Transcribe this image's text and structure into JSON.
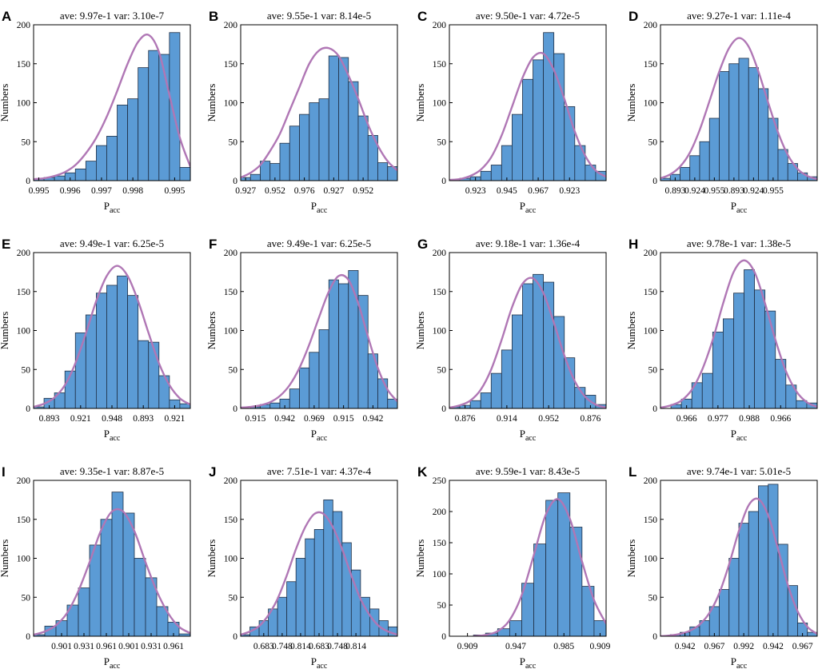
{
  "figure": {
    "title": "Histograms of P_acc with fitted normal curves"
  },
  "style": {
    "bar_fill": "#5b9bd5",
    "bar_stroke": "#1f2f45",
    "curve": "#b077b5",
    "axes": "#000000"
  },
  "chart_data": [
    {
      "id": "A",
      "type": "bar",
      "title": "ave: 9.97e-1 var: 3.10e-7",
      "xlabel": "P",
      "xlabel_sub": "acc",
      "ylabel": "Numbers",
      "ylim": [
        0,
        200
      ],
      "yticks": [
        0,
        50,
        100,
        150,
        200
      ],
      "xticks": [
        "0.995",
        "0.996",
        "0.997",
        "0.998",
        "0.995"
      ],
      "xtick_bins": [
        0.5,
        3.5,
        6.5,
        9.5,
        13.5
      ],
      "values": [
        2,
        4,
        6,
        10,
        15,
        25,
        45,
        57,
        97,
        105,
        145,
        167,
        162,
        190,
        17
      ],
      "curve": [
        [
          0,
          2
        ],
        [
          1,
          3
        ],
        [
          2,
          6
        ],
        [
          3,
          11
        ],
        [
          4,
          20
        ],
        [
          5,
          35
        ],
        [
          6,
          55
        ],
        [
          7,
          82
        ],
        [
          8,
          115
        ],
        [
          9,
          150
        ],
        [
          10,
          178
        ],
        [
          11,
          187
        ],
        [
          12,
          165
        ],
        [
          13,
          110
        ],
        [
          14,
          55
        ],
        [
          15,
          18
        ]
      ]
    },
    {
      "id": "B",
      "type": "bar",
      "title": "ave: 9.55e-1 var: 8.14e-5",
      "xlabel": "P",
      "xlabel_sub": "acc",
      "ylabel": "Numbers",
      "ylim": [
        0,
        200
      ],
      "yticks": [
        0,
        50,
        100,
        150,
        200
      ],
      "xticks": [
        "0.927",
        "0.952",
        "0.976",
        "0.927",
        "0.952"
      ],
      "xtick_bins": [
        0.5,
        3.5,
        6.5,
        9.5,
        12.5
      ],
      "values": [
        4,
        8,
        25,
        22,
        48,
        70,
        85,
        100,
        105,
        160,
        158,
        127,
        83,
        58,
        23,
        18
      ],
      "curve": [
        [
          0,
          4
        ],
        [
          1,
          10
        ],
        [
          2,
          20
        ],
        [
          3,
          38
        ],
        [
          4,
          60
        ],
        [
          5,
          90
        ],
        [
          6,
          120
        ],
        [
          7,
          150
        ],
        [
          8,
          167
        ],
        [
          9,
          170
        ],
        [
          10,
          160
        ],
        [
          11,
          135
        ],
        [
          12,
          105
        ],
        [
          13,
          72
        ],
        [
          14,
          45
        ],
        [
          15,
          25
        ],
        [
          16,
          13
        ]
      ]
    },
    {
      "id": "C",
      "type": "bar",
      "title": "ave: 9.50e-1 var: 4.72e-5",
      "xlabel": "P",
      "xlabel_sub": "acc",
      "ylabel": "Numbers",
      "ylim": [
        0,
        200
      ],
      "yticks": [
        0,
        50,
        100,
        150,
        200
      ],
      "xticks": [
        "0.923",
        "0.945",
        "0.967",
        "0.923"
      ],
      "xtick_bins": [
        2.5,
        5.5,
        8.5,
        11.5
      ],
      "values": [
        1,
        3,
        5,
        12,
        20,
        45,
        85,
        130,
        155,
        190,
        163,
        95,
        45,
        20,
        12
      ],
      "curve": [
        [
          0,
          1
        ],
        [
          1,
          2
        ],
        [
          2,
          6
        ],
        [
          3,
          14
        ],
        [
          4,
          30
        ],
        [
          5,
          58
        ],
        [
          6,
          95
        ],
        [
          7,
          132
        ],
        [
          8,
          158
        ],
        [
          9,
          163
        ],
        [
          10,
          142
        ],
        [
          11,
          105
        ],
        [
          12,
          63
        ],
        [
          13,
          32
        ],
        [
          14,
          13
        ],
        [
          15,
          5
        ]
      ]
    },
    {
      "id": "D",
      "type": "bar",
      "title": "ave: 9.27e-1 var: 1.11e-4",
      "xlabel": "P",
      "xlabel_sub": "acc",
      "ylabel": "Numbers",
      "ylim": [
        0,
        200
      ],
      "yticks": [
        0,
        50,
        100,
        150,
        200
      ],
      "xticks": [
        "0.893",
        "0.924",
        "0.955",
        "0.893",
        "0.924",
        "0.955"
      ],
      "xtick_bins": [
        1.5,
        3.5,
        5.5,
        7.5,
        9.5,
        11.5
      ],
      "values": [
        3,
        8,
        17,
        32,
        50,
        80,
        140,
        150,
        157,
        145,
        118,
        80,
        40,
        22,
        10,
        5
      ],
      "curve": [
        [
          0,
          3
        ],
        [
          1,
          8
        ],
        [
          2,
          18
        ],
        [
          3,
          36
        ],
        [
          4,
          65
        ],
        [
          5,
          102
        ],
        [
          6,
          140
        ],
        [
          7,
          170
        ],
        [
          8,
          183
        ],
        [
          9,
          172
        ],
        [
          10,
          140
        ],
        [
          11,
          100
        ],
        [
          12,
          62
        ],
        [
          13,
          33
        ],
        [
          14,
          15
        ],
        [
          15,
          6
        ],
        [
          16,
          2
        ]
      ]
    },
    {
      "id": "E",
      "type": "bar",
      "title": "ave: 9.49e-1 var: 6.25e-5",
      "xlabel": "P",
      "xlabel_sub": "acc",
      "ylabel": "Numbers",
      "ylim": [
        0,
        200
      ],
      "yticks": [
        0,
        50,
        100,
        150,
        200
      ],
      "xticks": [
        "0.893",
        "0.921",
        "0.948",
        "0.893",
        "0.921"
      ],
      "xtick_bins": [
        1.5,
        4.5,
        7.5,
        10.5,
        13.5
      ],
      "values": [
        2,
        13,
        20,
        48,
        97,
        120,
        148,
        158,
        170,
        145,
        87,
        85,
        42,
        11,
        6
      ],
      "curve": [
        [
          0,
          2
        ],
        [
          1,
          6
        ],
        [
          2,
          14
        ],
        [
          3,
          30
        ],
        [
          4,
          58
        ],
        [
          5,
          96
        ],
        [
          6,
          138
        ],
        [
          7,
          170
        ],
        [
          8,
          183
        ],
        [
          9,
          170
        ],
        [
          10,
          138
        ],
        [
          11,
          97
        ],
        [
          12,
          58
        ],
        [
          13,
          30
        ],
        [
          14,
          13
        ],
        [
          15,
          5
        ]
      ]
    },
    {
      "id": "F",
      "type": "bar",
      "title": "ave: 9.49e-1 var: 6.25e-5",
      "xlabel": "P",
      "xlabel_sub": "acc",
      "ylabel": "Numbers",
      "ylim": [
        0,
        200
      ],
      "yticks": [
        0,
        50,
        100,
        150,
        200
      ],
      "xticks": [
        "0.915",
        "0.942",
        "0.969",
        "0.915",
        "0.942"
      ],
      "xtick_bins": [
        1.5,
        4.5,
        7.5,
        10.5,
        13.5
      ],
      "values": [
        0,
        2,
        5,
        7,
        12,
        25,
        52,
        72,
        101,
        165,
        160,
        177,
        145,
        70,
        38,
        12
      ],
      "curve": [
        [
          0,
          1
        ],
        [
          1,
          2
        ],
        [
          2,
          4
        ],
        [
          3,
          8
        ],
        [
          4,
          16
        ],
        [
          5,
          30
        ],
        [
          6,
          52
        ],
        [
          7,
          82
        ],
        [
          8,
          117
        ],
        [
          9,
          150
        ],
        [
          10,
          170
        ],
        [
          11,
          165
        ],
        [
          12,
          135
        ],
        [
          13,
          92
        ],
        [
          14,
          52
        ],
        [
          15,
          24
        ],
        [
          16,
          9
        ]
      ]
    },
    {
      "id": "G",
      "type": "bar",
      "title": "ave: 9.18e-1 var: 1.36e-4",
      "xlabel": "P",
      "xlabel_sub": "acc",
      "ylabel": "Numbers",
      "ylim": [
        0,
        200
      ],
      "yticks": [
        0,
        50,
        100,
        150,
        200
      ],
      "xticks": [
        "0.876",
        "0.914",
        "0.952",
        "0.876"
      ],
      "xtick_bins": [
        1.5,
        5.5,
        9.5,
        13.5
      ],
      "values": [
        2,
        4,
        10,
        20,
        45,
        75,
        120,
        160,
        172,
        162,
        118,
        65,
        27,
        17,
        5
      ],
      "curve": [
        [
          0,
          1
        ],
        [
          1,
          4
        ],
        [
          2,
          10
        ],
        [
          3,
          24
        ],
        [
          4,
          50
        ],
        [
          5,
          88
        ],
        [
          6,
          130
        ],
        [
          7,
          160
        ],
        [
          8,
          167
        ],
        [
          9,
          148
        ],
        [
          10,
          110
        ],
        [
          11,
          68
        ],
        [
          12,
          35
        ],
        [
          13,
          15
        ],
        [
          14,
          5
        ],
        [
          15,
          1
        ]
      ]
    },
    {
      "id": "H",
      "type": "bar",
      "title": "ave: 9.78e-1 var: 1.38e-5",
      "xlabel": "P",
      "xlabel_sub": "acc",
      "ylabel": "Numbers",
      "ylim": [
        0,
        200
      ],
      "yticks": [
        0,
        50,
        100,
        150,
        200
      ],
      "xticks": [
        "0.966",
        "0.977",
        "0.988",
        "0.966"
      ],
      "xtick_bins": [
        2.5,
        5.5,
        8.5,
        11.5
      ],
      "values": [
        0,
        5,
        12,
        33,
        45,
        98,
        115,
        148,
        178,
        152,
        125,
        63,
        30,
        10,
        7
      ],
      "curve": [
        [
          0,
          1
        ],
        [
          1,
          4
        ],
        [
          2,
          10
        ],
        [
          3,
          24
        ],
        [
          4,
          50
        ],
        [
          5,
          88
        ],
        [
          6,
          135
        ],
        [
          7,
          175
        ],
        [
          8,
          190
        ],
        [
          9,
          175
        ],
        [
          10,
          135
        ],
        [
          11,
          88
        ],
        [
          12,
          48
        ],
        [
          13,
          22
        ],
        [
          14,
          8
        ],
        [
          15,
          2
        ]
      ]
    },
    {
      "id": "I",
      "type": "bar",
      "title": "ave: 9.35e-1 var: 8.87e-5",
      "xlabel": "P",
      "xlabel_sub": "acc",
      "ylabel": "Numbers",
      "ylim": [
        0,
        200
      ],
      "yticks": [
        0,
        50,
        100,
        150,
        200
      ],
      "xticks": [
        "0.901",
        "0.931",
        "0.961",
        "0.901",
        "0.931",
        "0.961"
      ],
      "xtick_bins": [
        2.5,
        4.5,
        6.5,
        8.5,
        10.5,
        12.5
      ],
      "values": [
        2,
        13,
        20,
        40,
        62,
        117,
        150,
        185,
        158,
        100,
        75,
        38,
        18,
        3
      ],
      "curve": [
        [
          0,
          2
        ],
        [
          1,
          6
        ],
        [
          2,
          14
        ],
        [
          3,
          30
        ],
        [
          4,
          58
        ],
        [
          5,
          95
        ],
        [
          6,
          135
        ],
        [
          7,
          160
        ],
        [
          8,
          160
        ],
        [
          9,
          135
        ],
        [
          10,
          95
        ],
        [
          11,
          58
        ],
        [
          12,
          30
        ],
        [
          13,
          12
        ],
        [
          14,
          4
        ]
      ]
    },
    {
      "id": "J",
      "type": "bar",
      "title": "ave: 7.51e-1 var: 4.37e-4",
      "xlabel": "P",
      "xlabel_sub": "acc",
      "ylabel": "Numbers",
      "ylim": [
        0,
        200
      ],
      "yticks": [
        0,
        50,
        100,
        150,
        200
      ],
      "xticks": [
        "0.683",
        "0.748",
        "0.814",
        "0.683",
        "0.748",
        "0.814"
      ],
      "xtick_bins": [
        2.5,
        4.5,
        6.5,
        8.5,
        10.5,
        12.5
      ],
      "values": [
        2,
        12,
        20,
        35,
        50,
        70,
        100,
        125,
        137,
        175,
        160,
        120,
        85,
        50,
        35,
        20,
        12
      ],
      "curve": [
        [
          0,
          2
        ],
        [
          1,
          6
        ],
        [
          2,
          13
        ],
        [
          3,
          27
        ],
        [
          4,
          48
        ],
        [
          5,
          78
        ],
        [
          6,
          112
        ],
        [
          7,
          140
        ],
        [
          8,
          157
        ],
        [
          9,
          157
        ],
        [
          10,
          140
        ],
        [
          11,
          112
        ],
        [
          12,
          78
        ],
        [
          13,
          48
        ],
        [
          14,
          27
        ],
        [
          15,
          13
        ],
        [
          16,
          6
        ],
        [
          17,
          2
        ]
      ]
    },
    {
      "id": "K",
      "type": "bar",
      "title": "ave: 9.59e-1 var: 8.43e-5",
      "xlabel": "P",
      "xlabel_sub": "acc",
      "ylabel": "Numbers",
      "ylim": [
        0,
        250
      ],
      "yticks": [
        0,
        50,
        100,
        150,
        200,
        250
      ],
      "xticks": [
        "0.909",
        "0.947",
        "0.985",
        "0.909"
      ],
      "xtick_bins": [
        1.5,
        5.5,
        9.5,
        12.5
      ],
      "values": [
        0,
        0,
        2,
        5,
        12,
        25,
        85,
        148,
        218,
        230,
        175,
        80,
        25
      ],
      "curve": [
        [
          2,
          0
        ],
        [
          3,
          2
        ],
        [
          4,
          8
        ],
        [
          5,
          26
        ],
        [
          6,
          66
        ],
        [
          7,
          130
        ],
        [
          8,
          195
        ],
        [
          9,
          220
        ],
        [
          10,
          188
        ],
        [
          11,
          120
        ],
        [
          12,
          58
        ],
        [
          13,
          20
        ]
      ]
    },
    {
      "id": "L",
      "type": "bar",
      "title": "ave: 9.74e-1 var: 5.01e-5",
      "xlabel": "P",
      "xlabel_sub": "acc",
      "ylabel": "Numbers",
      "ylim": [
        0,
        200
      ],
      "yticks": [
        0,
        50,
        100,
        150,
        200
      ],
      "xticks": [
        "0.942",
        "0.967",
        "0.992",
        "0.942",
        "0.967"
      ],
      "xtick_bins": [
        2.5,
        5.5,
        8.5,
        11.5,
        14.5
      ],
      "values": [
        0,
        2,
        5,
        12,
        20,
        38,
        60,
        100,
        145,
        160,
        193,
        195,
        118,
        65,
        17,
        5
      ],
      "curve": [
        [
          0,
          0
        ],
        [
          1,
          1
        ],
        [
          2,
          3
        ],
        [
          3,
          7
        ],
        [
          4,
          15
        ],
        [
          5,
          30
        ],
        [
          6,
          55
        ],
        [
          7,
          92
        ],
        [
          8,
          135
        ],
        [
          9,
          168
        ],
        [
          10,
          176
        ],
        [
          11,
          155
        ],
        [
          12,
          112
        ],
        [
          13,
          66
        ],
        [
          14,
          32
        ],
        [
          15,
          12
        ],
        [
          16,
          3
        ]
      ]
    }
  ]
}
